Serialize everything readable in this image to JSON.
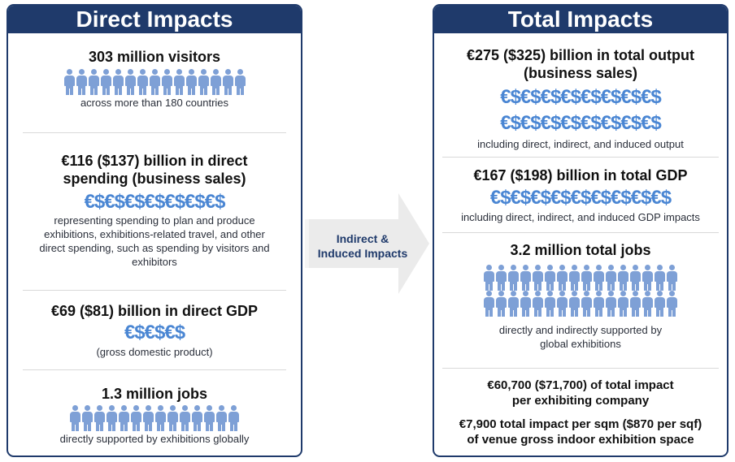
{
  "direct": {
    "title": "Direct Impacts",
    "visitors_title": "303 million visitors",
    "visitors_caption": "across more than 180 countries",
    "spending_title_1": "€116 ($137) billion in direct",
    "spending_title_2": "spending (business sales)",
    "spending_money": "€$€$€$€$€$€$€$",
    "spending_caption_1": "representing spending to plan and produce",
    "spending_caption_2": "exhibitions, exhibitions-related travel, and other",
    "spending_caption_3": "direct spending, such as spending by visitors and",
    "spending_caption_4": "exhibitors",
    "gdp_title": "€69 ($81) billion in direct GDP",
    "gdp_money": "€$€$€$",
    "gdp_caption": "(gross domestic product)",
    "jobs_title": "1.3 million jobs",
    "jobs_caption": "directly supported by exhibitions globally"
  },
  "arrow": {
    "label_1": "Indirect &",
    "label_2": "Induced Impacts"
  },
  "total": {
    "title": "Total Impacts",
    "output_title_1": "€275 ($325) billion in total output",
    "output_title_2": "(business sales)",
    "output_money_1": "€$€$€$€$€$€$€$€$",
    "output_money_2": "€$€$€$€$€$€$€$€$",
    "output_caption": "including direct, indirect, and induced output",
    "gdp_title": "€167 ($198) billion in total GDP",
    "gdp_money": "€$€$€$€$€$€$€$€$€$",
    "gdp_caption": "including direct, indirect, and induced GDP impacts",
    "jobs_title": "3.2 million total jobs",
    "jobs_caption_1": "directly and indirectly supported by",
    "jobs_caption_2": "global exhibitions",
    "per_company_1": "€60,700 ($71,700) of total impact",
    "per_company_2": "per exhibiting company",
    "per_sqm_1": "€7,900 total impact per sqm ($870 per sqf)",
    "per_sqm_2": "of venue gross indoor exhibition space"
  },
  "colors": {
    "navy": "#1f3a6b",
    "money_blue": "#4a86d3",
    "person_blue": "#7ea0d6"
  }
}
